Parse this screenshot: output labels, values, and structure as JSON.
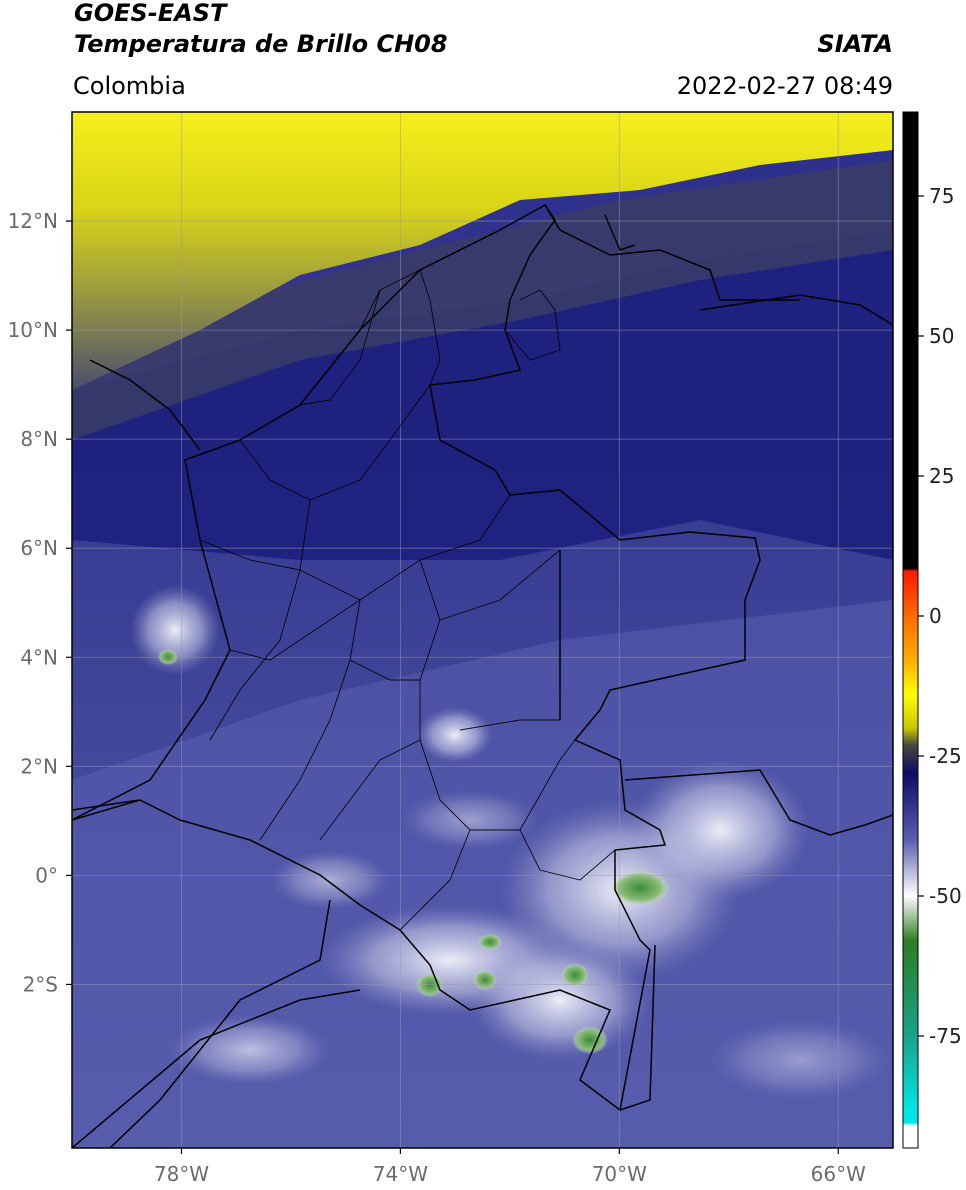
{
  "header": {
    "title_line1": "GOES-EAST",
    "title_line2": "Temperatura de Brillo CH08",
    "region": "Colombia",
    "agency": "SIATA",
    "datetime": "2022-02-27 08:49"
  },
  "map": {
    "lon_range": [
      -80,
      -65
    ],
    "lat_range": [
      -5,
      14
    ],
    "lat_ticks": [
      {
        "value": 12,
        "label": "12°N"
      },
      {
        "value": 10,
        "label": "10°N"
      },
      {
        "value": 8,
        "label": "8°N"
      },
      {
        "value": 6,
        "label": "6°N"
      },
      {
        "value": 4,
        "label": "4°N"
      },
      {
        "value": 2,
        "label": "2°N"
      },
      {
        "value": 0,
        "label": "0°"
      },
      {
        "value": -2,
        "label": "2°S"
      }
    ],
    "lon_ticks": [
      {
        "value": -78,
        "label": "78°W"
      },
      {
        "value": -74,
        "label": "74°W"
      },
      {
        "value": -70,
        "label": "70°W"
      },
      {
        "value": -66,
        "label": "66°W"
      }
    ],
    "colors": {
      "cloud_top_cold": "#1d1f7d",
      "mid_level": "#4a4f9e",
      "convective_white": "#eef0f8",
      "convective_core": "#3f8a3a",
      "warm_dry": "#f2ee16"
    }
  },
  "colorbar": {
    "vmin": -95,
    "vmax": 90,
    "tick_values": [
      75,
      50,
      25,
      0,
      -25,
      -50,
      -75
    ],
    "tick_labels": [
      "75",
      "50",
      "25",
      "0",
      "-25",
      "-50",
      "-75"
    ],
    "stops": [
      {
        "value": 90,
        "color": "#000000"
      },
      {
        "value": 8.5,
        "color": "#000000"
      },
      {
        "value": 8,
        "color": "#ff1a00"
      },
      {
        "value": 0,
        "color": "#ff6a00"
      },
      {
        "value": -8,
        "color": "#ffb000"
      },
      {
        "value": -14,
        "color": "#ffff00"
      },
      {
        "value": -20,
        "color": "#c8c800"
      },
      {
        "value": -23,
        "color": "#4a4a3a"
      },
      {
        "value": -28,
        "color": "#0c0c66"
      },
      {
        "value": -40,
        "color": "#5a5fb0"
      },
      {
        "value": -50,
        "color": "#ffffff"
      },
      {
        "value": -58,
        "color": "#2e7d22"
      },
      {
        "value": -75,
        "color": "#1aa38a"
      },
      {
        "value": -88,
        "color": "#00e5e5"
      },
      {
        "value": -90.5,
        "color": "#00e5e5"
      },
      {
        "value": -91,
        "color": "#ffffff"
      },
      {
        "value": -95,
        "color": "#ffffff"
      }
    ]
  }
}
